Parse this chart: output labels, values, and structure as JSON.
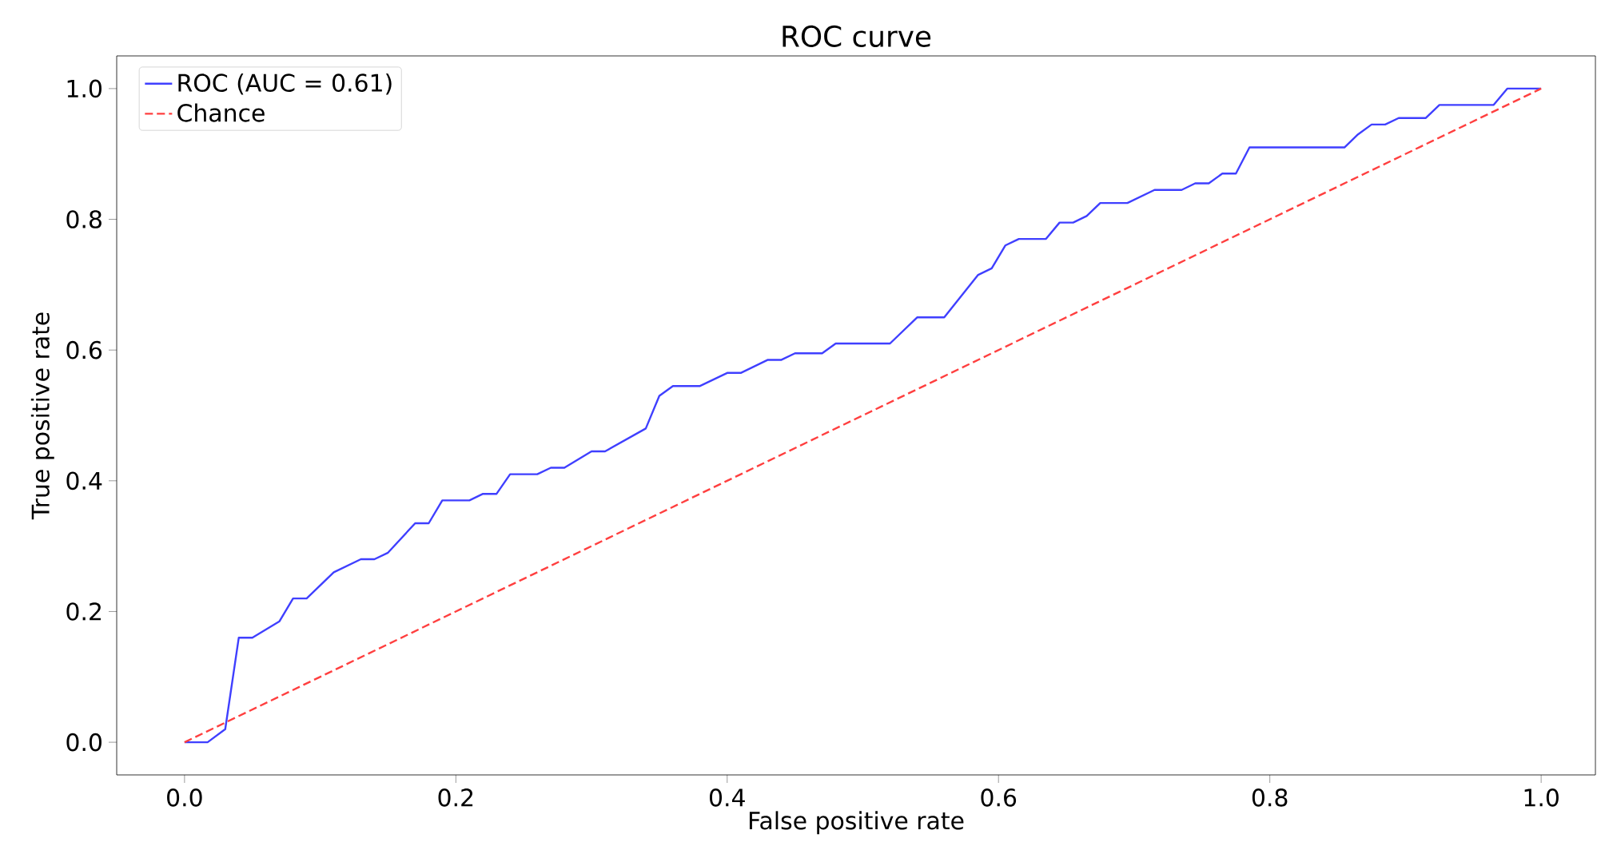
{
  "chart_data": {
    "type": "line",
    "title": "ROC curve",
    "xlabel": "False positive rate",
    "ylabel": "True positive rate",
    "xlim": [
      -0.05,
      1.04
    ],
    "ylim": [
      -0.05,
      1.05
    ],
    "xticks": [
      {
        "value": 0,
        "label": "0.0"
      },
      0.2,
      0.4,
      0.6,
      0.8,
      {
        "value": 1,
        "label": "1.0"
      }
    ],
    "yticks": [
      {
        "value": 0,
        "label": "0.0"
      },
      0.2,
      0.4,
      0.6,
      0.8,
      {
        "value": 1,
        "label": "1.0"
      }
    ],
    "grid": false,
    "legend": "top left",
    "series": [
      {
        "name": "ROC (AUC = 0.61)",
        "color": "#3f3fff",
        "line_style": "solid",
        "x": [
          0,
          0.017,
          0.03,
          0.04,
          0.05,
          0.07,
          0.08,
          0.09,
          0.11,
          0.13,
          0.14,
          0.15,
          0.17,
          0.18,
          0.19,
          0.21,
          0.22,
          0.23,
          0.24,
          0.26,
          0.27,
          0.28,
          0.3,
          0.31,
          0.34,
          0.35,
          0.36,
          0.38,
          0.4,
          0.41,
          0.43,
          0.44,
          0.45,
          0.47,
          0.48,
          0.52,
          0.54,
          0.56,
          0.585,
          0.595,
          0.605,
          0.615,
          0.635,
          0.645,
          0.655,
          0.665,
          0.675,
          0.695,
          0.715,
          0.735,
          0.745,
          0.755,
          0.765,
          0.775,
          0.785,
          0.855,
          0.865,
          0.875,
          0.885,
          0.895,
          0.915,
          0.925,
          0.965,
          0.975,
          1.0
        ],
        "values": [
          0,
          0,
          0.02,
          0.16,
          0.16,
          0.185,
          0.22,
          0.22,
          0.26,
          0.28,
          0.28,
          0.29,
          0.335,
          0.335,
          0.37,
          0.37,
          0.38,
          0.38,
          0.41,
          0.41,
          0.42,
          0.42,
          0.445,
          0.445,
          0.48,
          0.53,
          0.545,
          0.545,
          0.565,
          0.565,
          0.585,
          0.585,
          0.595,
          0.595,
          0.61,
          0.61,
          0.65,
          0.65,
          0.715,
          0.725,
          0.76,
          0.77,
          0.77,
          0.795,
          0.795,
          0.805,
          0.825,
          0.825,
          0.845,
          0.845,
          0.855,
          0.855,
          0.87,
          0.87,
          0.91,
          0.91,
          0.93,
          0.945,
          0.945,
          0.955,
          0.955,
          0.975,
          0.975,
          1.0,
          1.0
        ]
      },
      {
        "name": "Chance",
        "color": "#ff3f3f",
        "line_style": "dashed",
        "x": [
          0,
          1
        ],
        "values": [
          0,
          1
        ]
      }
    ]
  }
}
